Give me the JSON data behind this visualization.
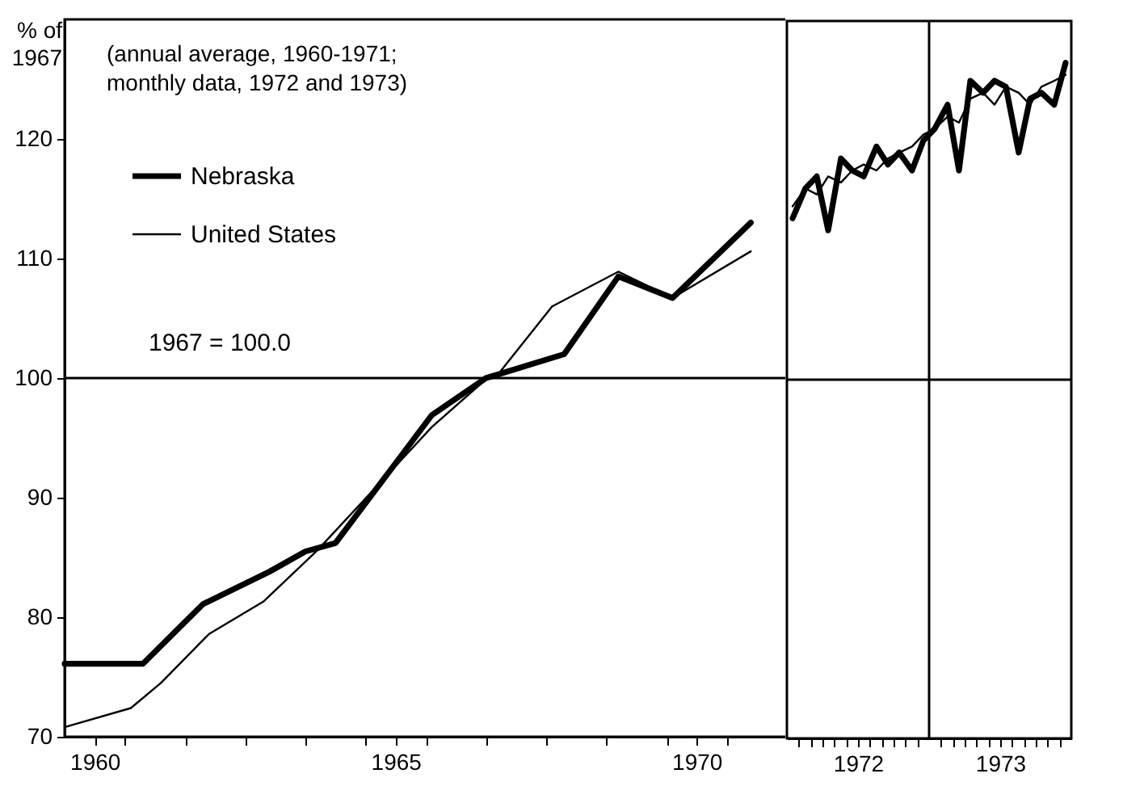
{
  "chart_data": [
    {
      "type": "line",
      "ylabel": "% of 1967",
      "annotations": [
        "(annual average, 1960-1971;",
        "monthly data, 1972 and 1973)"
      ],
      "xlim": [
        1960,
        1972
      ],
      "xticks": [
        {
          "value": 1960.5,
          "label": "1960"
        },
        {
          "value": 1961,
          "label": null
        },
        {
          "value": 1962,
          "label": null
        },
        {
          "value": 1963,
          "label": null
        },
        {
          "value": 1964,
          "label": null
        },
        {
          "value": 1965,
          "label": null
        },
        {
          "value": 1965.5,
          "label": "1965"
        },
        {
          "value": 1966,
          "label": null
        },
        {
          "value": 1967,
          "label": null
        },
        {
          "value": 1968,
          "label": null
        },
        {
          "value": 1969,
          "label": null
        },
        {
          "value": 1970,
          "label": null
        },
        {
          "value": 1970.5,
          "label": "1970"
        },
        {
          "value": 1971,
          "label": null
        }
      ],
      "ylim": [
        70,
        130
      ],
      "yticks": [
        70,
        80,
        90,
        100,
        110,
        120
      ],
      "series": [
        {
          "name": "Nebraska",
          "color": "#000000",
          "x": [
            1960.0,
            1961.3,
            1962.3,
            1963.4,
            1964.0,
            1964.5,
            1966.1,
            1967.0,
            1967.2,
            1968.3,
            1969.2,
            1970.1,
            1971.4
          ],
          "values": [
            76.1,
            76.1,
            81.1,
            83.8,
            85.5,
            86.2,
            96.9,
            100.0,
            100.3,
            102.0,
            108.5,
            106.7,
            113.0
          ]
        },
        {
          "name": "United States",
          "color": "#000000",
          "x": [
            1960.0,
            1961.1,
            1961.6,
            1962.4,
            1963.3,
            1964.2,
            1966.1,
            1967.0,
            1967.2,
            1968.1,
            1969.2,
            1970.1,
            1971.4
          ],
          "values": [
            70.8,
            72.4,
            74.5,
            78.6,
            81.3,
            85.6,
            95.9,
            99.9,
            100.3,
            106.0,
            108.9,
            106.7,
            110.6
          ]
        }
      ],
      "ref_lines": [
        {
          "axis": "y",
          "value": 100,
          "label": "1967 = 100.0"
        }
      ],
      "legend": "top left",
      "grid": false,
      "marker": "none",
      "line_style": "solid"
    },
    {
      "type": "line",
      "tick_labels": "x",
      "xlim": [
        1972,
        1974
      ],
      "xticks": [
        {
          "value": 1972.08,
          "label": null
        },
        {
          "value": 1972.17,
          "label": null
        },
        {
          "value": 1972.25,
          "label": null
        },
        {
          "value": 1972.33,
          "label": null
        },
        {
          "value": 1972.42,
          "label": null
        },
        {
          "value": 1972.5,
          "label": "1972"
        },
        {
          "value": 1972.58,
          "label": null
        },
        {
          "value": 1972.67,
          "label": null
        },
        {
          "value": 1972.75,
          "label": null
        },
        {
          "value": 1972.83,
          "label": null
        },
        {
          "value": 1972.92,
          "label": null
        },
        {
          "value": 1973.08,
          "label": null
        },
        {
          "value": 1973.17,
          "label": null
        },
        {
          "value": 1973.25,
          "label": null
        },
        {
          "value": 1973.33,
          "label": null
        },
        {
          "value": 1973.42,
          "label": null
        },
        {
          "value": 1973.5,
          "label": "1973"
        },
        {
          "value": 1973.58,
          "label": null
        },
        {
          "value": 1973.67,
          "label": null
        },
        {
          "value": 1973.75,
          "label": null
        },
        {
          "value": 1973.83,
          "label": null
        },
        {
          "value": 1973.92,
          "label": null
        }
      ],
      "ylim": [
        70,
        130
      ],
      "yticks": [
        70,
        80,
        90,
        100,
        110,
        120
      ],
      "series": [
        {
          "color": "#000000",
          "x": [
            1972.04,
            1972.13,
            1972.21,
            1972.29,
            1972.38,
            1972.46,
            1972.54,
            1972.63,
            1972.71,
            1972.79,
            1972.88,
            1972.96,
            1973.04,
            1973.13,
            1973.21,
            1973.29,
            1973.38,
            1973.46,
            1973.54,
            1973.63,
            1973.71,
            1973.79,
            1973.88,
            1973.96
          ],
          "values": [
            113.5,
            116,
            117,
            112.5,
            118.5,
            117.5,
            117,
            119.5,
            118,
            119,
            117.5,
            120,
            121,
            123,
            117.5,
            125,
            124,
            125,
            124.5,
            119,
            123.5,
            124,
            123,
            126.5
          ]
        },
        {
          "color": "#000000",
          "x": [
            1972.04,
            1972.13,
            1972.21,
            1972.29,
            1972.38,
            1972.46,
            1972.54,
            1972.63,
            1972.71,
            1972.79,
            1972.88,
            1972.96,
            1973.04,
            1973.13,
            1973.21,
            1973.29,
            1973.38,
            1973.46,
            1973.54,
            1973.63,
            1973.71,
            1973.79,
            1973.88,
            1973.96
          ],
          "values": [
            114.5,
            116,
            115.5,
            117,
            116.5,
            117.5,
            118,
            117.5,
            118.5,
            119,
            119.5,
            120.5,
            121,
            122,
            121.5,
            123.5,
            124,
            123,
            124.5,
            124,
            123,
            124.5,
            125,
            125.5
          ]
        }
      ],
      "ref_lines": [
        {
          "axis": "y",
          "value": 100
        },
        {
          "axis": "x",
          "value": 1973
        }
      ],
      "grid": false,
      "marker": "none",
      "line_style": "solid"
    }
  ]
}
